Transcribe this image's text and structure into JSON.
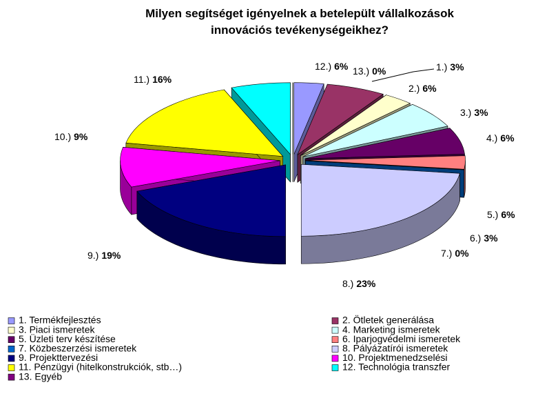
{
  "chart_data": {
    "type": "pie",
    "title": "Milyen segítséget igényelnek a betelepült vállalkozások\ninnovációs tevékenységeikhez?",
    "categories": [
      "1. Termékfejlesztés",
      "2. Ötletek generálása",
      "3. Piaci ismeretek",
      "4. Marketing ismeretek",
      "5. Üzleti terv készítése",
      "6. Iparjogvédelmi ismeretek",
      "7. Közbeszerzési ismeretek",
      "8. Pályázatírói ismeretek",
      "9. Projekttervezési",
      "10. Projektmenedzselési",
      "11. Pénzügyi (hitelkonstrukciók, stb…)",
      "12. Technológia transzfer",
      "13. Egyéb"
    ],
    "slice_labels": [
      "1.)",
      "2.)",
      "3.)",
      "4.)",
      "5.)",
      "6.)",
      "7.)",
      "8.)",
      "9.)",
      "10.)",
      "11.)",
      "12.)",
      "13.)"
    ],
    "values": [
      3,
      6,
      3,
      6,
      6,
      3,
      0,
      23,
      19,
      9,
      16,
      6,
      0
    ],
    "value_labels": [
      "3%",
      "6%",
      "3%",
      "6%",
      "6%",
      "3%",
      "0%",
      "23%",
      "19%",
      "9%",
      "16%",
      "6%",
      "0%"
    ],
    "colors": [
      "#9999ff",
      "#993366",
      "#ffffcc",
      "#ccffff",
      "#660066",
      "#ff8080",
      "#0066cc",
      "#ccccff",
      "#000080",
      "#ff00ff",
      "#ffff00",
      "#00ffff",
      "#800080"
    ],
    "legend": "bottom"
  }
}
